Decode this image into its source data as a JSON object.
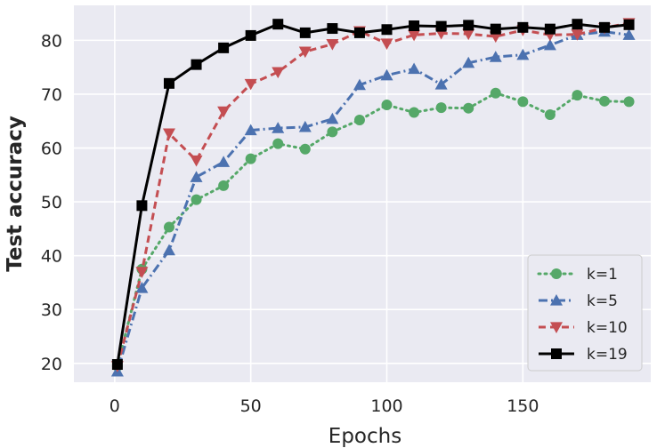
{
  "chart_data": {
    "type": "line",
    "xlabel": "Epochs",
    "ylabel": "Test accuracy",
    "xlim": [
      -15,
      197
    ],
    "ylim": [
      16.5,
      86.5
    ],
    "xticks": [
      0,
      50,
      100,
      150
    ],
    "yticks": [
      20,
      30,
      40,
      50,
      60,
      70,
      80
    ],
    "x": [
      1,
      10,
      20,
      30,
      40,
      50,
      60,
      70,
      80,
      90,
      100,
      110,
      120,
      130,
      140,
      150,
      160,
      170,
      180,
      189
    ],
    "grid": true,
    "legend_position": "lower-right",
    "series": [
      {
        "name": "k=1",
        "color": "#55a868",
        "linestyle": "dotted",
        "marker": "circle",
        "values": [
          19.5,
          37.5,
          45.3,
          50.4,
          53.0,
          58.0,
          60.8,
          59.8,
          63.0,
          65.2,
          68.0,
          66.6,
          67.5,
          67.4,
          70.2,
          68.6,
          66.2,
          69.8,
          68.7,
          68.6
        ]
      },
      {
        "name": "k=5",
        "color": "#4c72b0",
        "linestyle": "dashdot",
        "marker": "triangle-up",
        "values": [
          18.5,
          34.0,
          41.0,
          54.6,
          57.4,
          63.3,
          63.7,
          63.9,
          65.4,
          71.7,
          73.5,
          74.7,
          71.8,
          75.8,
          76.9,
          77.3,
          79.1,
          81.0,
          81.6,
          81.0
        ]
      },
      {
        "name": "k=10",
        "color": "#c44e52",
        "linestyle": "dashed",
        "marker": "triangle-down",
        "values": [
          19.5,
          37.0,
          62.7,
          57.7,
          66.8,
          71.9,
          74.1,
          77.9,
          79.3,
          81.7,
          79.4,
          81.0,
          81.3,
          81.2,
          80.7,
          81.9,
          81.0,
          81.1,
          82.3,
          83.2
        ]
      },
      {
        "name": "k=19",
        "color": "#000000",
        "linestyle": "solid",
        "marker": "square",
        "values": [
          19.8,
          49.3,
          72.0,
          75.5,
          78.6,
          80.9,
          83.0,
          81.4,
          82.2,
          81.4,
          82.0,
          82.7,
          82.6,
          82.8,
          82.1,
          82.4,
          82.1,
          83.0,
          82.4,
          82.9
        ]
      }
    ]
  }
}
